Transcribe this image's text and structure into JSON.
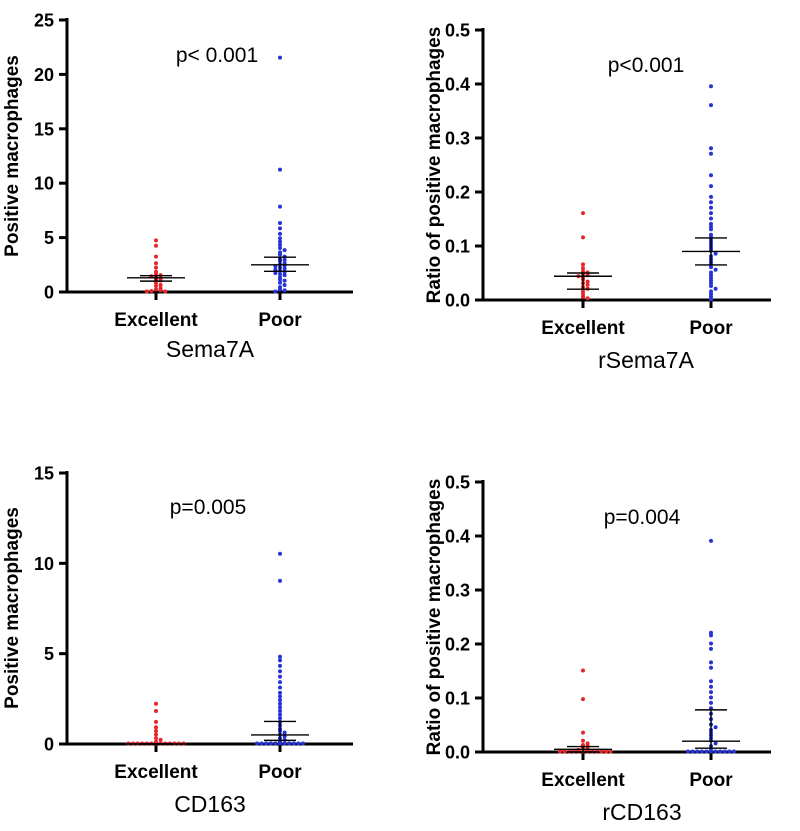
{
  "colors": {
    "excellent": "#e8262a",
    "poor": "#2633d6",
    "axis": "#000000"
  },
  "chart_data": [
    {
      "type": "scatter",
      "panel": "Sema7A",
      "ylabel": "Positive macrophages",
      "xlabel": "Sema7A",
      "categories": [
        "Excellent",
        "Poor"
      ],
      "ylim": [
        0,
        25
      ],
      "yticks": [
        "0",
        "5",
        "10",
        "15",
        "20",
        "25"
      ],
      "annotation": "p< 0.001",
      "series": [
        {
          "name": "Excellent",
          "values": [
            4.7,
            4.2,
            3.2,
            2.6,
            2.2,
            1.8,
            1.6,
            1.5,
            1.4,
            1.3,
            1.2,
            1.1,
            1.0,
            0.8,
            0.6,
            0.5,
            0.3,
            0.2,
            0.1,
            0.05,
            0.0,
            0.0
          ],
          "summary": {
            "median": 1.3,
            "ci_low": 1.0,
            "ci_high": 1.5
          }
        },
        {
          "name": "Poor",
          "values": [
            21.5,
            11.2,
            7.8,
            6.3,
            5.8,
            5.3,
            4.9,
            4.6,
            4.3,
            4.0,
            3.8,
            3.6,
            3.4,
            3.2,
            3.0,
            2.9,
            2.8,
            2.6,
            2.5,
            2.4,
            2.3,
            2.2,
            2.1,
            2.0,
            1.9,
            1.8,
            1.7,
            1.6,
            1.5,
            1.3,
            1.1,
            1.0,
            0.8,
            0.6,
            0.4,
            0.2,
            0.1,
            0.0
          ],
          "summary": {
            "median": 2.5,
            "ci_low": 1.9,
            "ci_high": 3.2
          }
        }
      ]
    },
    {
      "type": "scatter",
      "panel": "rSema7A",
      "ylabel": "Ratio of positive macrophages",
      "xlabel": "rSema7A",
      "categories": [
        "Excellent",
        "Poor"
      ],
      "ylim": [
        0,
        0.5
      ],
      "yticks": [
        "0.0",
        "0.1",
        "0.2",
        "0.3",
        "0.4",
        "0.5"
      ],
      "annotation": "p<0.001",
      "series": [
        {
          "name": "Excellent",
          "values": [
            0.16,
            0.115,
            0.065,
            0.058,
            0.052,
            0.05,
            0.047,
            0.045,
            0.043,
            0.04,
            0.037,
            0.033,
            0.03,
            0.027,
            0.023,
            0.02,
            0.015,
            0.01,
            0.005,
            0.002
          ],
          "summary": {
            "median": 0.044,
            "ci_low": 0.02,
            "ci_high": 0.05
          }
        },
        {
          "name": "Poor",
          "values": [
            0.395,
            0.36,
            0.28,
            0.27,
            0.23,
            0.21,
            0.19,
            0.18,
            0.17,
            0.16,
            0.15,
            0.14,
            0.135,
            0.13,
            0.12,
            0.115,
            0.11,
            0.105,
            0.1,
            0.095,
            0.09,
            0.085,
            0.08,
            0.075,
            0.07,
            0.065,
            0.06,
            0.055,
            0.05,
            0.045,
            0.04,
            0.035,
            0.03,
            0.025,
            0.02,
            0.015,
            0.01,
            0.005,
            0.0
          ],
          "summary": {
            "median": 0.09,
            "ci_low": 0.065,
            "ci_high": 0.115
          }
        }
      ]
    },
    {
      "type": "scatter",
      "panel": "CD163",
      "ylabel": "Positive macrophages",
      "xlabel": "CD163",
      "categories": [
        "Excellent",
        "Poor"
      ],
      "ylim": [
        0,
        15
      ],
      "yticks": [
        "0",
        "5",
        "10",
        "15"
      ],
      "annotation": "p=0.005",
      "series": [
        {
          "name": "Excellent",
          "values": [
            2.2,
            1.8,
            1.2,
            0.9,
            0.7,
            0.5,
            0.3,
            0.2,
            0.1,
            0,
            0,
            0,
            0,
            0,
            0,
            0,
            0,
            0,
            0,
            0,
            0,
            0
          ],
          "summary": {
            "median": 0.0,
            "ci_low": 0.0,
            "ci_high": 0.0
          }
        },
        {
          "name": "Poor",
          "values": [
            10.5,
            9.0,
            4.8,
            4.6,
            4.3,
            4.0,
            3.7,
            3.4,
            3.1,
            2.8,
            2.6,
            2.4,
            2.2,
            2.0,
            1.8,
            1.6,
            1.4,
            1.2,
            1.0,
            0.8,
            0.7,
            0.6,
            0.5,
            0.4,
            0.3,
            0.2,
            0.1,
            0,
            0,
            0,
            0,
            0,
            0,
            0,
            0,
            0,
            0,
            0
          ],
          "summary": {
            "median": 0.5,
            "ci_low": 0.2,
            "ci_high": 1.25
          }
        }
      ]
    },
    {
      "type": "scatter",
      "panel": "rCD163",
      "ylabel": "Ratio of positive macrophages",
      "xlabel": "rCD163",
      "categories": [
        "Excellent",
        "Poor"
      ],
      "ylim": [
        0,
        0.5
      ],
      "yticks": [
        "0.0",
        "0.1",
        "0.2",
        "0.3",
        "0.4",
        "0.5"
      ],
      "annotation": "p=0.004",
      "series": [
        {
          "name": "Excellent",
          "values": [
            0.15,
            0.097,
            0.035,
            0.02,
            0.015,
            0.012,
            0.01,
            0.008,
            0.005,
            0.003,
            0,
            0,
            0,
            0,
            0,
            0,
            0,
            0,
            0,
            0,
            0,
            0
          ],
          "summary": {
            "median": 0.005,
            "ci_low": 0.0,
            "ci_high": 0.01
          }
        },
        {
          "name": "Poor",
          "values": [
            0.39,
            0.22,
            0.215,
            0.2,
            0.19,
            0.165,
            0.155,
            0.13,
            0.12,
            0.11,
            0.1,
            0.09,
            0.08,
            0.07,
            0.06,
            0.05,
            0.045,
            0.04,
            0.035,
            0.03,
            0.025,
            0.02,
            0.015,
            0.01,
            0.005,
            0,
            0,
            0,
            0,
            0,
            0,
            0,
            0,
            0,
            0,
            0
          ],
          "summary": {
            "median": 0.02,
            "ci_low": 0.007,
            "ci_high": 0.078
          }
        }
      ]
    }
  ]
}
